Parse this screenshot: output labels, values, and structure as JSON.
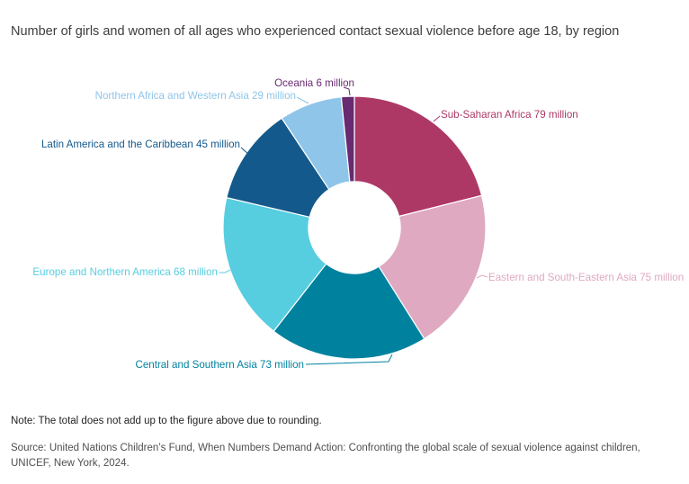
{
  "title": "Number of girls and women of all ages who experienced contact sexual violence before age 18, by region",
  "chart_data": {
    "type": "pie",
    "subtype": "donut",
    "title": "Number of girls and women of all ages who experienced contact sexual violence before age 18, by region",
    "categories": [
      "Sub-Saharan Africa",
      "Eastern and South-Eastern Asia",
      "Central and Southern Asia",
      "Europe and Northern America",
      "Latin America and the Caribbean",
      "Northern Africa and Western Asia",
      "Oceania"
    ],
    "values": [
      79,
      75,
      73,
      68,
      45,
      29,
      6
    ],
    "unit": "million",
    "display_labels": [
      "Sub-Saharan Africa 79 million",
      "Eastern and South-Eastern Asia 75 million",
      "Central and Southern Asia 73 million",
      "Europe and Northern America 68 million",
      "Latin America and the Caribbean 45 million",
      "Northern Africa and Western Asia 29 million",
      "Oceania 6 million"
    ],
    "colors": [
      "#ad3866",
      "#dfa9c1",
      "#00829f",
      "#57cde0",
      "#14598b",
      "#8fc5e9",
      "#682a70"
    ],
    "start_angle_deg": 0,
    "direction": "clockwise",
    "inner_radius_ratio": 0.35,
    "legend": "none"
  },
  "note": "Note: The total does not add up to the figure above due to rounding.",
  "source": {
    "line1": "Source: United Nations Children’s Fund, When Numbers Demand Action: Confronting the global scale of sexual violence against children,",
    "line2": "UNICEF, New York, 2024."
  }
}
